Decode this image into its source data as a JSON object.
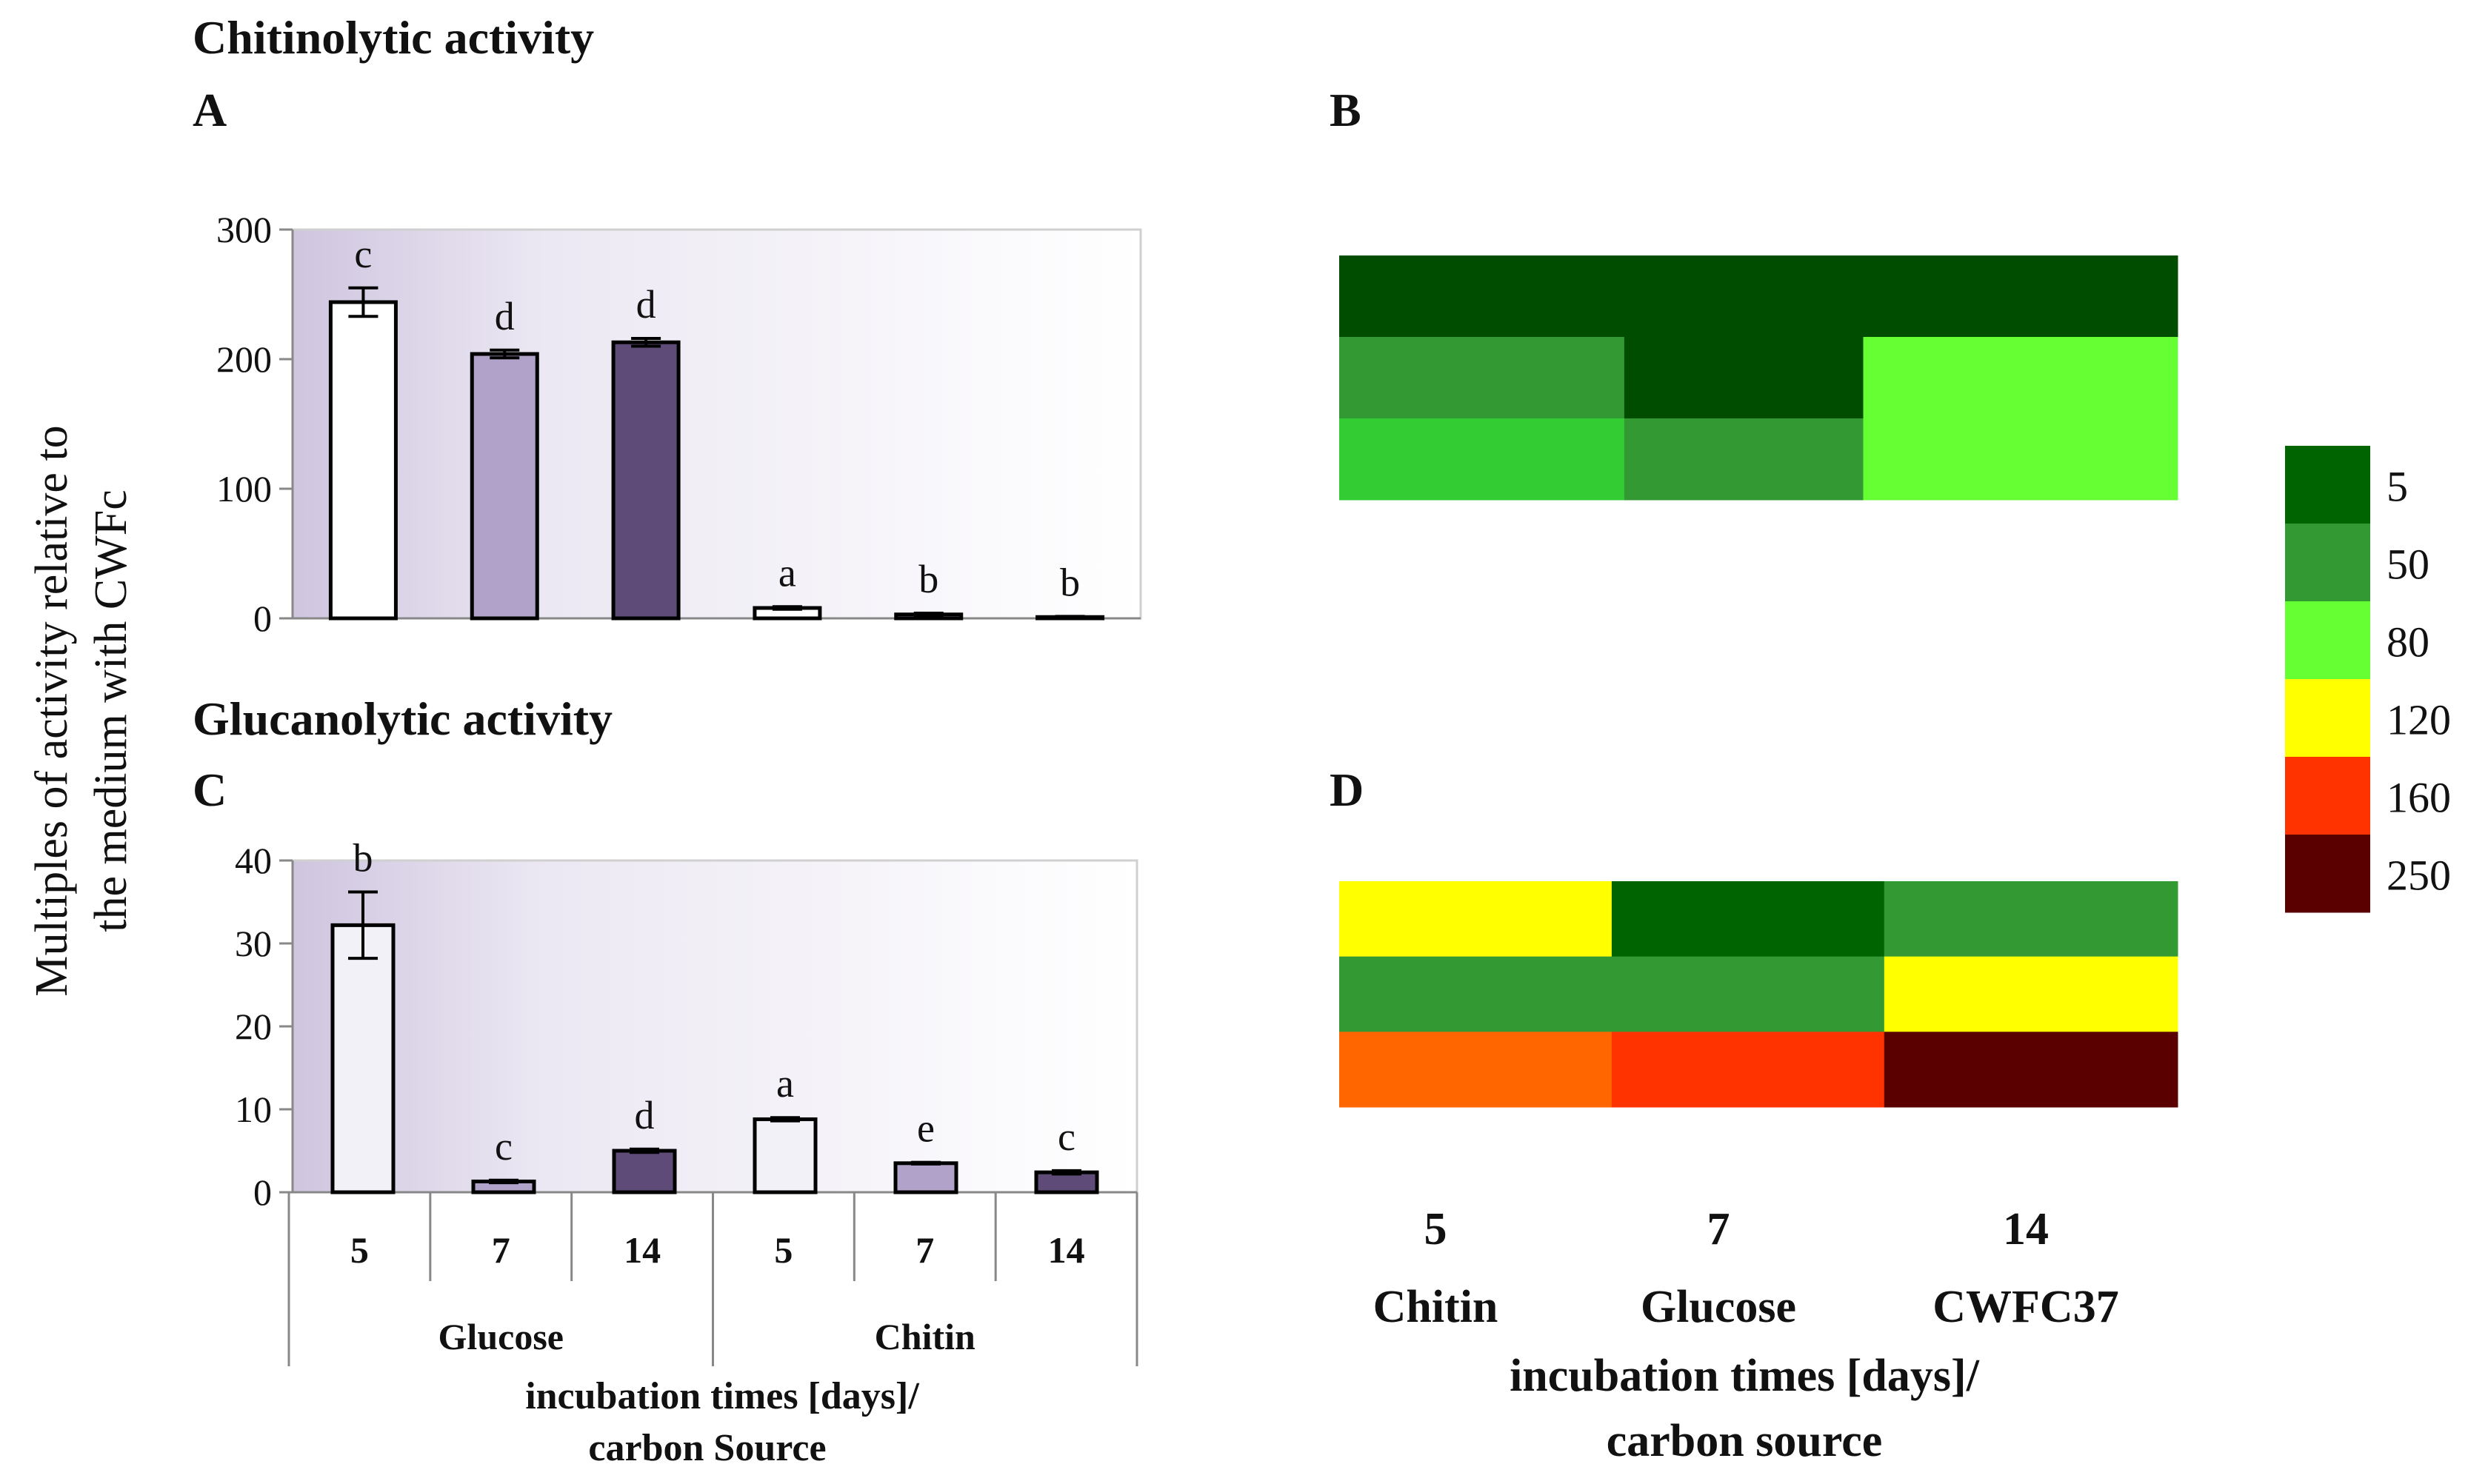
{
  "headings": {
    "chitinolytic": "Chitinolytic activity",
    "glucanolytic": "Glucanolytic activity"
  },
  "panel_labels": {
    "a": "A",
    "b": "B",
    "c": "C",
    "d": "D"
  },
  "y_axis_title": {
    "line1": "Multiples of activity relative to",
    "line2": "the medium with CWFc"
  },
  "bar_x_axis": {
    "days": [
      "5",
      "7",
      "14",
      "5",
      "7",
      "14"
    ],
    "groups": [
      "Glucose",
      "Chitin"
    ],
    "title_line1": "incubation times [days]/",
    "title_line2": "carbon Source"
  },
  "heatmap_x_axis": {
    "days": [
      "5",
      "7",
      "14"
    ],
    "sources": [
      "Chitin",
      "Glucose",
      "CWFC37"
    ],
    "title_line1": "incubation times [days]/",
    "title_line2": "carbon source"
  },
  "legend": {
    "labels": [
      "5",
      "50",
      "80",
      "120",
      "160",
      "250"
    ],
    "colors": [
      "#006400",
      "#339933",
      "#66ff33",
      "#ffff00",
      "#ff3300",
      "#5a0000"
    ]
  },
  "bar_colors": [
    "#ffffff",
    "#b1a2c9",
    "#5e4b78",
    "#ffffff",
    "#b1a2c9",
    "#5e4b78"
  ],
  "bar_colors_c": [
    "#f3f1f8",
    "#b1a2c9",
    "#5e4b78",
    "#f3f1f8",
    "#b1a2c9",
    "#5e4b78"
  ],
  "chart_data": [
    {
      "panel": "A",
      "type": "bar",
      "title": "Chitinolytic activity",
      "categories": [
        "5",
        "7",
        "14",
        "5",
        "7",
        "14"
      ],
      "groups": [
        "Glucose",
        "Chitin"
      ],
      "values": [
        244,
        204,
        213,
        8,
        3,
        1
      ],
      "errors": [
        11,
        3,
        3,
        1,
        1,
        0.5
      ],
      "letters": [
        "c",
        "d",
        "d",
        "a",
        "b",
        "b"
      ],
      "ylim": [
        0,
        300
      ],
      "yticks": [
        0,
        100,
        200,
        300
      ],
      "ylabel": "Multiples of activity relative to the medium with CWFc"
    },
    {
      "panel": "B",
      "type": "heatmap",
      "columns": [
        "5 Chitin",
        "7 Glucose",
        "14 CWFC37"
      ],
      "rows": [
        [
          "#004d00",
          "#004d00",
          "#004d00"
        ],
        [
          "#339933",
          "#004d00",
          "#66ff33"
        ],
        [
          "#33cc33",
          "#339933",
          "#66ff33"
        ]
      ],
      "column_edges": [
        0,
        0.34,
        0.625,
        1
      ]
    },
    {
      "panel": "C",
      "type": "bar",
      "title": "Glucanolytic activity",
      "categories": [
        "5",
        "7",
        "14",
        "5",
        "7",
        "14"
      ],
      "groups": [
        "Glucose",
        "Chitin"
      ],
      "values": [
        32.2,
        1.3,
        5.0,
        8.8,
        3.5,
        2.4
      ],
      "errors": [
        4.0,
        0.15,
        0.2,
        0.2,
        0.1,
        0.2
      ],
      "letters": [
        "b",
        "c",
        "d",
        "a",
        "e",
        "c"
      ],
      "ylim": [
        0,
        40
      ],
      "yticks": [
        0,
        10,
        20,
        30,
        40
      ],
      "xlabel": "incubation times [days]/ carbon Source"
    },
    {
      "panel": "D",
      "type": "heatmap",
      "columns": [
        "5 Chitin",
        "7 Glucose",
        "14 CWFC37"
      ],
      "rows": [
        [
          "#ffff00",
          "#006400",
          "#339933"
        ],
        [
          "#339933",
          "#339933",
          "#ffff00"
        ],
        [
          "#ff6600",
          "#ff3300",
          "#5a0000"
        ]
      ],
      "column_edges": [
        0,
        0.325,
        0.65,
        1
      ]
    }
  ]
}
